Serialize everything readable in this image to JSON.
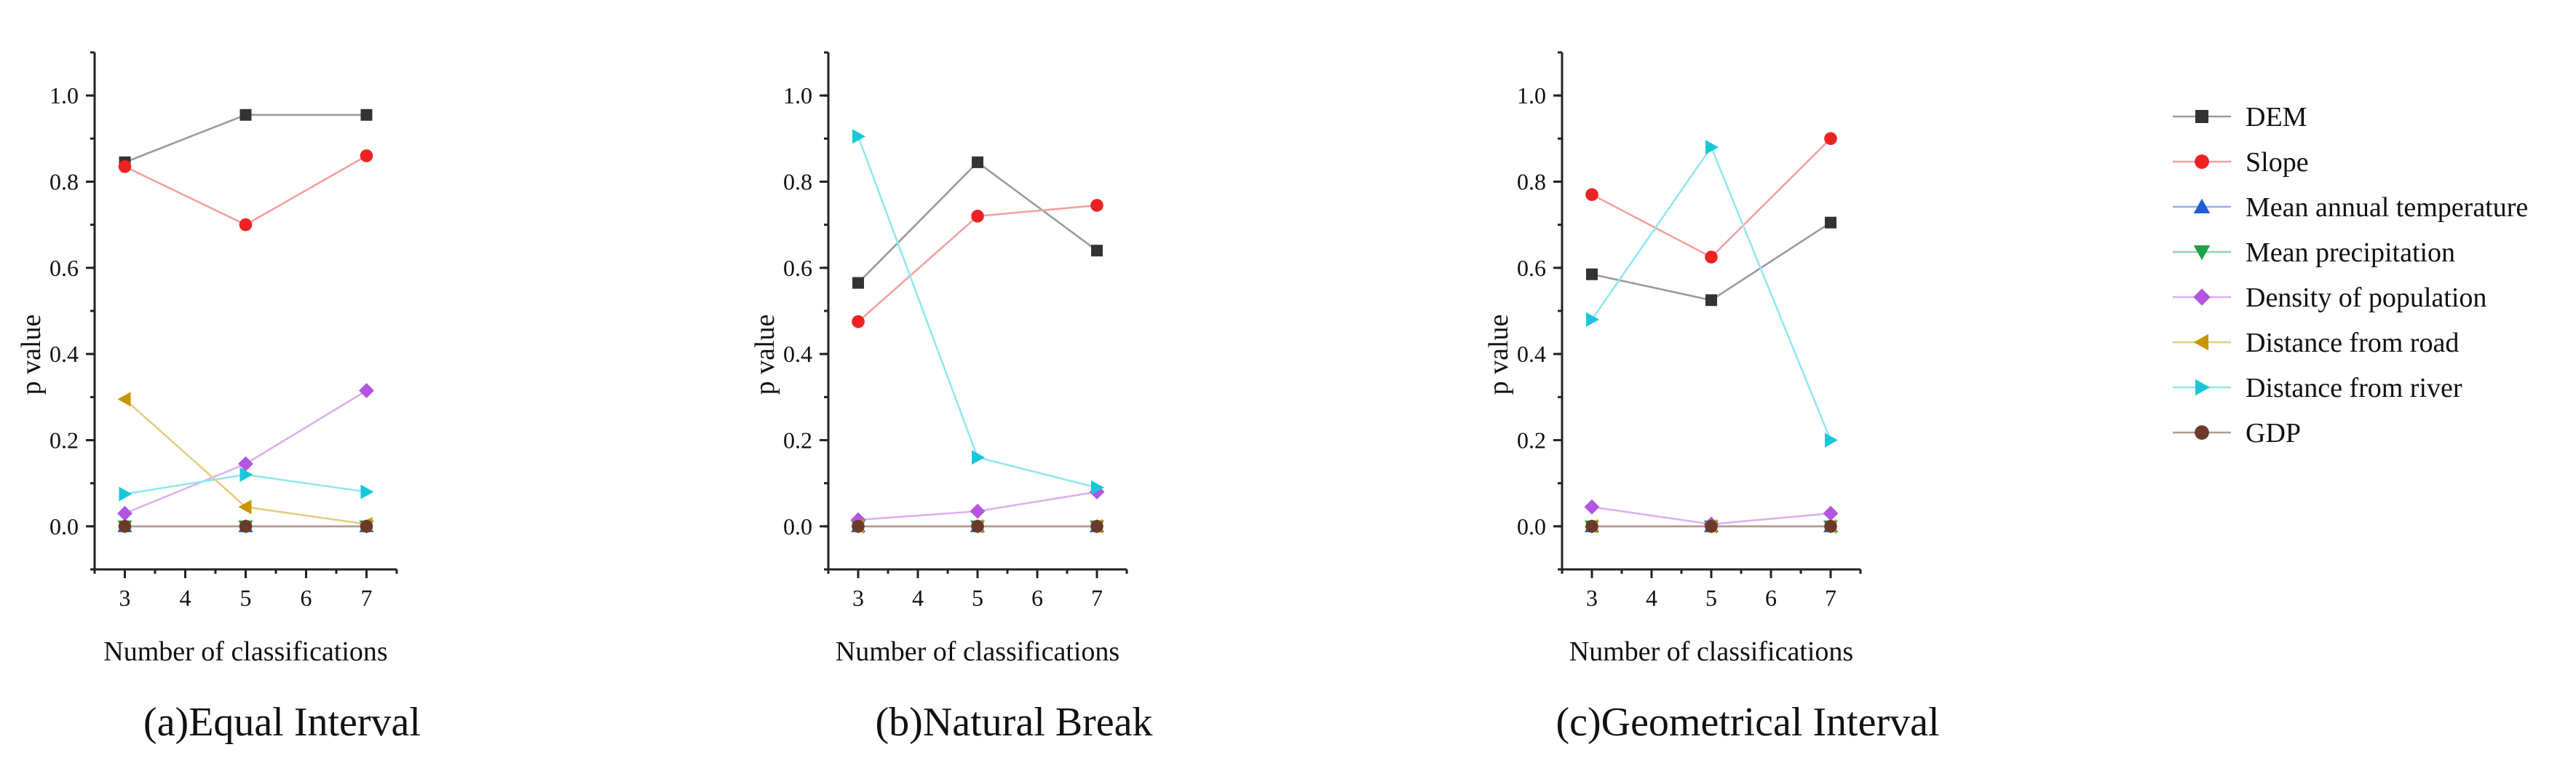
{
  "chart_data": [
    {
      "type": "line",
      "panel": "a",
      "caption": "(a)Equal Interval",
      "xlabel": "Number of classifications",
      "ylabel": "p value",
      "xlim": [
        2.5,
        7.5
      ],
      "ylim": [
        -0.1,
        1.1
      ],
      "xticks": [
        "3",
        "4",
        "5",
        "6",
        "7"
      ],
      "yticks": [
        "0.0",
        "0.2",
        "0.4",
        "0.6",
        "0.8",
        "1.0"
      ],
      "x": [
        3,
        5,
        7
      ],
      "series": [
        {
          "name": "DEM",
          "values": [
            0.845,
            0.955,
            0.955
          ]
        },
        {
          "name": "Slope",
          "values": [
            0.835,
            0.7,
            0.86
          ]
        },
        {
          "name": "Mean annual temperature",
          "values": [
            0.0,
            0.0,
            0.0
          ]
        },
        {
          "name": "Mean precipitation",
          "values": [
            0.0,
            0.0,
            0.0
          ]
        },
        {
          "name": "Density of population",
          "values": [
            0.03,
            0.145,
            0.315
          ]
        },
        {
          "name": "Distance from road",
          "values": [
            0.295,
            0.045,
            0.005
          ]
        },
        {
          "name": "Distance from river",
          "values": [
            0.075,
            0.12,
            0.08
          ]
        },
        {
          "name": "GDP",
          "values": [
            0.0,
            0.0,
            0.0
          ]
        }
      ]
    },
    {
      "type": "line",
      "panel": "b",
      "caption": "(b)Natural Break",
      "xlabel": "Number of classifications",
      "ylabel": "p value",
      "xlim": [
        2.5,
        7.5
      ],
      "ylim": [
        -0.1,
        1.1
      ],
      "xticks": [
        "3",
        "4",
        "5",
        "6",
        "7"
      ],
      "yticks": [
        "0.0",
        "0.2",
        "0.4",
        "0.6",
        "0.8",
        "1.0"
      ],
      "x": [
        3,
        5,
        7
      ],
      "series": [
        {
          "name": "DEM",
          "values": [
            0.565,
            0.845,
            0.64
          ]
        },
        {
          "name": "Slope",
          "values": [
            0.475,
            0.72,
            0.745
          ]
        },
        {
          "name": "Mean annual temperature",
          "values": [
            0.0,
            0.0,
            0.0
          ]
        },
        {
          "name": "Mean precipitation",
          "values": [
            0.0,
            0.0,
            0.0
          ]
        },
        {
          "name": "Density of population",
          "values": [
            0.015,
            0.035,
            0.08
          ]
        },
        {
          "name": "Distance from road",
          "values": [
            0.0,
            0.0,
            0.0
          ]
        },
        {
          "name": "Distance from river",
          "values": [
            0.905,
            0.16,
            0.09
          ]
        },
        {
          "name": "GDP",
          "values": [
            0.0,
            0.0,
            0.0
          ]
        }
      ]
    },
    {
      "type": "line",
      "panel": "c",
      "caption": "(c)Geometrical Interval",
      "xlabel": "Number of classifications",
      "ylabel": "p value",
      "xlim": [
        2.5,
        7.5
      ],
      "ylim": [
        -0.1,
        1.1
      ],
      "xticks": [
        "3",
        "4",
        "5",
        "6",
        "7"
      ],
      "yticks": [
        "0.0",
        "0.2",
        "0.4",
        "0.6",
        "0.8",
        "1.0"
      ],
      "x": [
        3,
        5,
        7
      ],
      "series": [
        {
          "name": "DEM",
          "values": [
            0.585,
            0.525,
            0.705
          ]
        },
        {
          "name": "Slope",
          "values": [
            0.77,
            0.625,
            0.9
          ]
        },
        {
          "name": "Mean annual temperature",
          "values": [
            0.0,
            0.0,
            0.0
          ]
        },
        {
          "name": "Mean precipitation",
          "values": [
            0.0,
            0.0,
            0.0
          ]
        },
        {
          "name": "Density of population",
          "values": [
            0.045,
            0.005,
            0.03
          ]
        },
        {
          "name": "Distance from road",
          "values": [
            0.0,
            0.0,
            0.0
          ]
        },
        {
          "name": "Distance from river",
          "values": [
            0.48,
            0.88,
            0.2
          ]
        },
        {
          "name": "GDP",
          "values": [
            0.0,
            0.0,
            0.0
          ]
        }
      ]
    }
  ],
  "legend": {
    "placement": "right",
    "items": [
      {
        "name": "DEM",
        "color": "#333333",
        "line_color": "#9a9a9a",
        "marker": "square"
      },
      {
        "name": "Slope",
        "color": "#ee2222",
        "line_color": "#f4a0a0",
        "marker": "circle"
      },
      {
        "name": "Mean annual temperature",
        "color": "#1f5fd6",
        "line_color": "#8fb0f0",
        "marker": "triangle-up"
      },
      {
        "name": "Mean precipitation",
        "color": "#1fa04a",
        "line_color": "#8fd4a5",
        "marker": "triangle-down"
      },
      {
        "name": "Density of population",
        "color": "#b455e0",
        "line_color": "#dcb0f0",
        "marker": "diamond"
      },
      {
        "name": "Distance from road",
        "color": "#c89600",
        "line_color": "#e6cc80",
        "marker": "triangle-left"
      },
      {
        "name": "Distance from river",
        "color": "#18c8d8",
        "line_color": "#90e8f0",
        "marker": "triangle-right"
      },
      {
        "name": "GDP",
        "color": "#6b3a2a",
        "line_color": "#b59a90",
        "marker": "circle"
      }
    ]
  }
}
